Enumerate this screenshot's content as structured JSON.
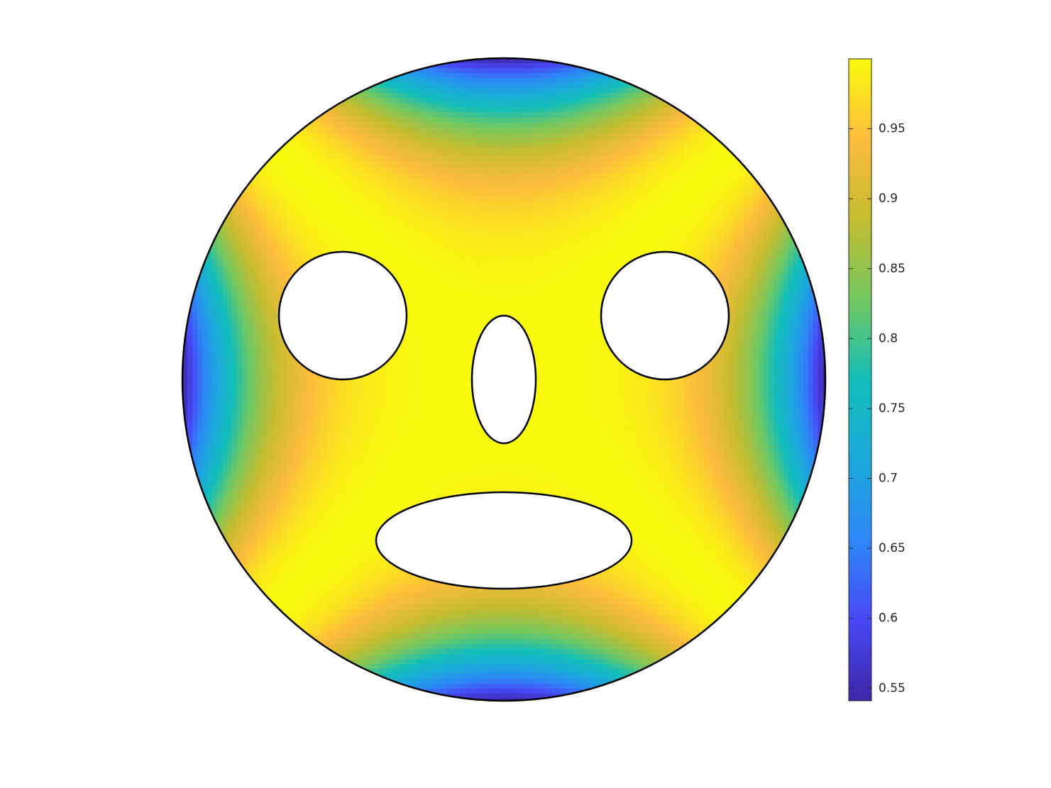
{
  "chart_data": {
    "type": "field",
    "clim": [
      0.541,
      1
    ],
    "colorbar_ticks": [
      0.55,
      0.6,
      0.65,
      0.7,
      0.75,
      0.8,
      0.85,
      0.9,
      0.95
    ],
    "colormap": [
      "#3e26a8",
      "#4748f4",
      "#2e87f7",
      "#1ba9db",
      "#12beb9",
      "#73c860",
      "#c4bc30",
      "#fdbc3c",
      "#f9fb0e"
    ]
  }
}
